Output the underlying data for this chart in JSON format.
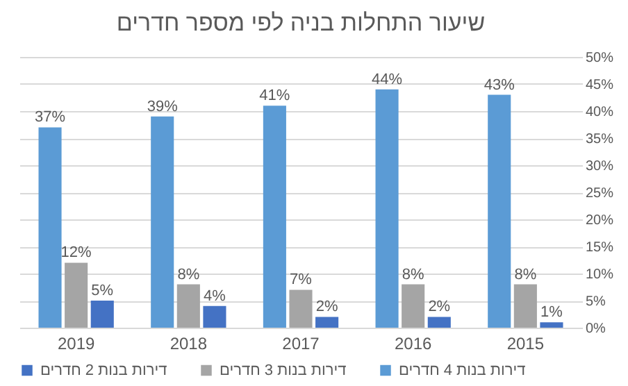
{
  "chart_data": {
    "type": "bar",
    "title": "שיעור התחלות בניה לפי מספר חדרים",
    "categories": [
      "2019",
      "2018",
      "2017",
      "2016",
      "2015"
    ],
    "series": [
      {
        "name": "דירות בנות 4 חדרים",
        "color": "#5b9bd5",
        "values": [
          37,
          39,
          41,
          44,
          43
        ],
        "value_labels": [
          "37%",
          "39%",
          "41%",
          "44%",
          "43%"
        ]
      },
      {
        "name": "דירות בנות 3 חדרים",
        "color": "#a5a5a5",
        "values": [
          12,
          8,
          7,
          8,
          8
        ],
        "value_labels": [
          "12%",
          "8%",
          "7%",
          "8%",
          "8%"
        ]
      },
      {
        "name": "דירות בנות 2 חדרים",
        "color": "#4472c4",
        "values": [
          5,
          4,
          2,
          2,
          1
        ],
        "value_labels": [
          "5%",
          "4%",
          "2%",
          "2%",
          "1%"
        ]
      }
    ],
    "ylim": [
      0,
      50
    ],
    "yticks": [
      {
        "value": 0,
        "label": "0%"
      },
      {
        "value": 5,
        "label": "5%"
      },
      {
        "value": 10,
        "label": "10%"
      },
      {
        "value": 15,
        "label": "15%"
      },
      {
        "value": 20,
        "label": "20%"
      },
      {
        "value": 25,
        "label": "25%"
      },
      {
        "value": 30,
        "label": "30%"
      },
      {
        "value": 35,
        "label": "35%"
      },
      {
        "value": 40,
        "label": "40%"
      },
      {
        "value": 45,
        "label": "45%"
      },
      {
        "value": 50,
        "label": "50%"
      }
    ],
    "grid": "y",
    "legend": "bottom"
  }
}
